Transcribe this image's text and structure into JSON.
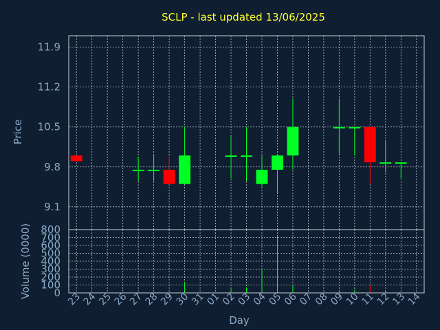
{
  "chart_data": {
    "type": "candlestick",
    "title": "SCLP - last updated 13/06/2025",
    "xlabel": "Day",
    "days": [
      "23",
      "24",
      "25",
      "26",
      "27",
      "28",
      "29",
      "30",
      "31",
      "01",
      "02",
      "03",
      "04",
      "05",
      "06",
      "07",
      "08",
      "09",
      "10",
      "11",
      "12",
      "13",
      "14"
    ],
    "price": {
      "ylabel": "Price",
      "yticks": [
        "9.1",
        "9.8",
        "10.5",
        "11.2",
        "11.9"
      ],
      "ylim": [
        8.7,
        12.1
      ],
      "up_color": "#00ff22",
      "down_color": "#ff0000",
      "candles": [
        {
          "day": "23",
          "open": 10.0,
          "high": 10.0,
          "low": 9.9,
          "close": 9.9
        },
        {
          "day": "27",
          "open": 9.75,
          "high": 9.98,
          "low": 9.55,
          "close": 9.75
        },
        {
          "day": "28",
          "open": 9.75,
          "high": 10.02,
          "low": 9.55,
          "close": 9.75
        },
        {
          "day": "29",
          "open": 9.75,
          "high": 10.0,
          "low": 9.5,
          "close": 9.5
        },
        {
          "day": "30",
          "open": 9.5,
          "high": 10.5,
          "low": 9.5,
          "close": 10.0
        },
        {
          "day": "02",
          "open": 10.0,
          "high": 10.36,
          "low": 9.6,
          "close": 10.0
        },
        {
          "day": "03",
          "open": 10.0,
          "high": 10.5,
          "low": 9.55,
          "close": 10.0
        },
        {
          "day": "04",
          "open": 9.5,
          "high": 10.0,
          "low": 9.45,
          "close": 9.75
        },
        {
          "day": "05",
          "open": 9.75,
          "high": 10.0,
          "low": 9.35,
          "close": 10.0
        },
        {
          "day": "06",
          "open": 10.0,
          "high": 11.0,
          "low": 9.75,
          "close": 10.5
        },
        {
          "day": "09",
          "open": 10.5,
          "high": 11.0,
          "low": 10.0,
          "close": 10.5
        },
        {
          "day": "10",
          "open": 10.5,
          "high": 10.5,
          "low": 10.0,
          "close": 10.5
        },
        {
          "day": "11",
          "open": 10.5,
          "high": 10.5,
          "low": 9.5,
          "close": 9.88
        },
        {
          "day": "12",
          "open": 9.88,
          "high": 10.25,
          "low": 9.7,
          "close": 9.88
        },
        {
          "day": "13",
          "open": 9.88,
          "high": 9.88,
          "low": 9.6,
          "close": 9.88
        }
      ]
    },
    "volume": {
      "ylabel": "Volume (0000)",
      "yticks": [
        "0",
        "100",
        "200",
        "300",
        "400",
        "500",
        "600",
        "700",
        "800"
      ],
      "ylim": [
        0,
        800
      ],
      "bars": [
        {
          "day": "29",
          "value": 8,
          "direction": "down"
        },
        {
          "day": "30",
          "value": 140,
          "direction": "up"
        },
        {
          "day": "02",
          "value": 50,
          "direction": "up"
        },
        {
          "day": "03",
          "value": 70,
          "direction": "up"
        },
        {
          "day": "04",
          "value": 290,
          "direction": "up"
        },
        {
          "day": "05",
          "value": 720,
          "direction": "up"
        },
        {
          "day": "06",
          "value": 90,
          "direction": "up"
        },
        {
          "day": "09",
          "value": 15,
          "direction": "up"
        },
        {
          "day": "10",
          "value": 40,
          "direction": "up"
        },
        {
          "day": "11",
          "value": 100,
          "direction": "down"
        },
        {
          "day": "12",
          "value": 20,
          "direction": "up"
        }
      ]
    }
  }
}
